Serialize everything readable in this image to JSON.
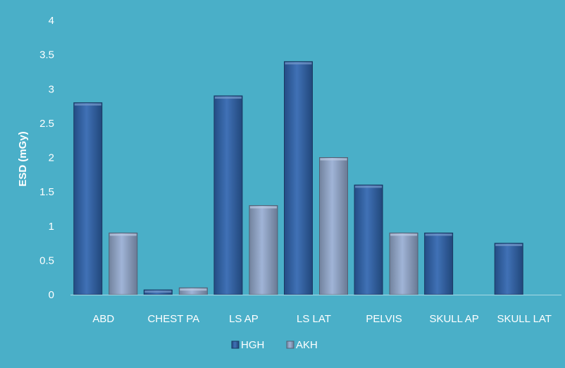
{
  "chart_data": {
    "type": "bar",
    "title": "",
    "xlabel": "",
    "ylabel": "ESD (mGy)",
    "ylim": [
      0,
      4
    ],
    "yticks": [
      "0",
      "0.5",
      "1",
      "1.5",
      "2",
      "2.5",
      "3",
      "3.5",
      "4"
    ],
    "grid": false,
    "legend_position": "bottom",
    "categories": [
      "ABD",
      "CHEST PA",
      "LS AP",
      "LS LAT",
      "PELVIS",
      "SKULL AP",
      "SKULL LAT"
    ],
    "series": [
      {
        "name": "HGH",
        "color": "#2f65b0",
        "values": [
          2.8,
          0.07,
          2.9,
          3.4,
          1.6,
          0.9,
          0.75
        ]
      },
      {
        "name": "AKH",
        "color": "#98aed3",
        "values": [
          0.9,
          0.1,
          1.3,
          2.0,
          0.9,
          null,
          null
        ]
      }
    ]
  },
  "style": {
    "background": "#4aafc8",
    "text_color": "#ffffff",
    "axis_color": "#a8d8e4"
  }
}
